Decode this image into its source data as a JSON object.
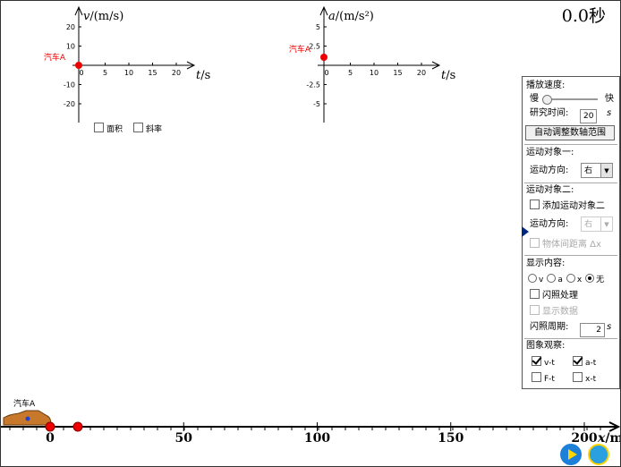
{
  "timer": "0.0秒",
  "graphs": [
    {
      "y_var": "v",
      "y_unit": "/(m/s)",
      "x_var": "t",
      "x_unit": "/s",
      "object": "汽车A",
      "xticks": [
        0,
        5,
        10,
        15,
        20
      ],
      "yticks": [
        20,
        10,
        -10,
        -20
      ]
    },
    {
      "y_var": "a",
      "y_unit": "/(m/s²)",
      "x_var": "t",
      "x_unit": "/s",
      "object": "汽车A",
      "xticks": [
        0,
        5,
        10,
        15,
        20
      ],
      "yticks": [
        5,
        2.5,
        -2.5,
        -5
      ]
    }
  ],
  "graph_options": [
    "面积",
    "斜率"
  ],
  "panel": {
    "speed_label": "播放速度:",
    "slow": "慢",
    "fast": "快",
    "time_label": "研究时间:",
    "time_value": "20",
    "time_unit": "s",
    "auto_button": "自动调整数轴范围",
    "object1": "运动对象一:",
    "direction_label": "运动方向:",
    "direction1": "右",
    "object2": "运动对象二:",
    "add_object2": "添加运动对象二",
    "direction2": "右",
    "distance": "物体间距离 Δx",
    "display_label": "显示内容:",
    "display_options": [
      "v",
      "a",
      "x",
      "无"
    ],
    "display_selected": 3,
    "flash": "闪照处理",
    "show_data": "显示数据",
    "period_label": "闪照周期:",
    "period_value": "2",
    "period_unit": "s",
    "observe_label": "图象观察:",
    "observe_options": [
      {
        "label": "v-t",
        "checked": true
      },
      {
        "label": "a-t",
        "checked": true
      },
      {
        "label": "F-t",
        "checked": false
      },
      {
        "label": "x-t",
        "checked": false
      }
    ]
  },
  "track": {
    "object": "汽车A",
    "ticks": [
      0,
      50,
      100,
      150,
      200
    ],
    "x_var": "x",
    "x_unit": "/m"
  }
}
